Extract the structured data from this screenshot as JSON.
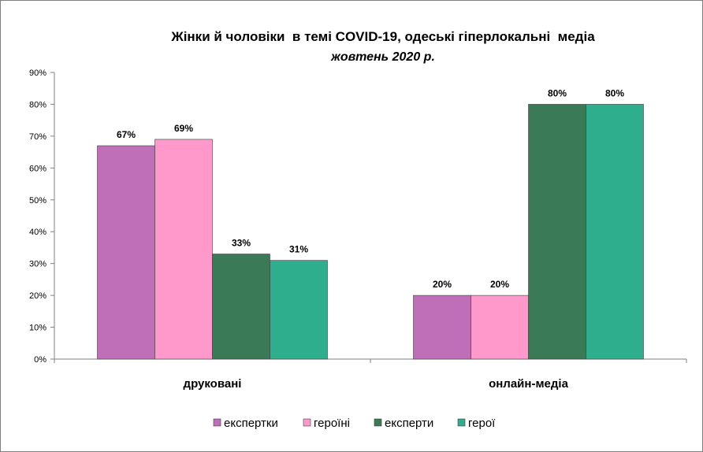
{
  "chart_data": {
    "type": "bar",
    "title": "Жінки й чоловіки  в темі COVID-19, одеські гіперлокальні  медіа",
    "subtitle": "жовтень 2020 р.",
    "xlabel": "",
    "ylabel": "",
    "categories": [
      "друковані",
      "онлайн-медіа"
    ],
    "series": [
      {
        "name": "експертки",
        "color": "#bf6fb8",
        "values": [
          67,
          20
        ],
        "labels": [
          "67%",
          "20%"
        ]
      },
      {
        "name": "героїні",
        "color": "#ff99cc",
        "values": [
          69,
          20
        ],
        "labels": [
          "69%",
          "20%"
        ]
      },
      {
        "name": "експерти",
        "color": "#3a7a56",
        "values": [
          33,
          80
        ],
        "labels": [
          "33%",
          "80%"
        ]
      },
      {
        "name": "герої",
        "color": "#2eae8d",
        "values": [
          31,
          80
        ],
        "labels": [
          "31%",
          "80%"
        ]
      }
    ],
    "ylim": [
      0,
      90
    ],
    "yticks": [
      0,
      10,
      20,
      30,
      40,
      50,
      60,
      70,
      80,
      90
    ],
    "ytick_labels": [
      "0%",
      "10%",
      "20%",
      "30%",
      "40%",
      "50%",
      "60%",
      "70%",
      "80%",
      "90%"
    ],
    "grid": false,
    "legend_position": "bottom"
  }
}
